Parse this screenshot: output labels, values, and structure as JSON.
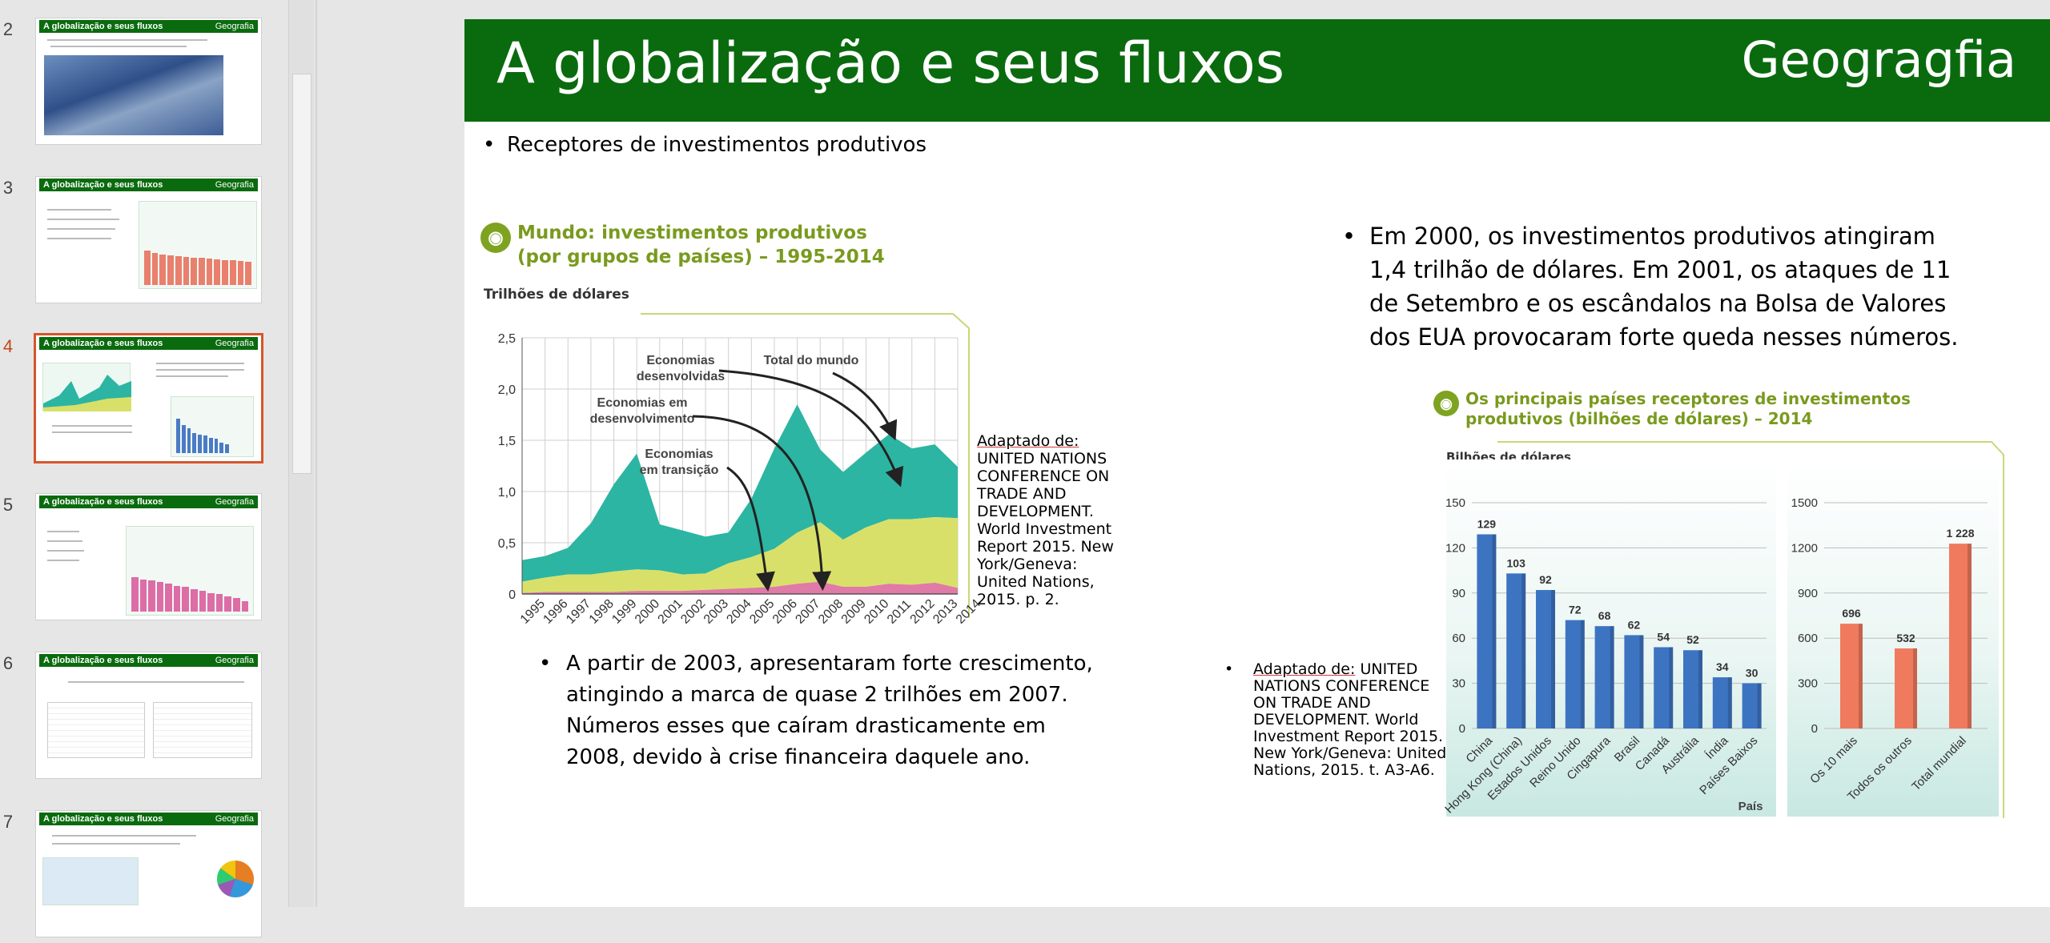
{
  "thumbnails": [
    {
      "number": "2",
      "title": "A globalização e seus fluxos",
      "subject": "Geografia",
      "active": false
    },
    {
      "number": "3",
      "title": "A globalização e seus fluxos",
      "subject": "Geografia",
      "active": false
    },
    {
      "number": "4",
      "title": "A globalização e seus fluxos",
      "subject": "Geografia",
      "active": true
    },
    {
      "number": "5",
      "title": "A globalização e seus fluxos",
      "subject": "Geografia",
      "active": false
    },
    {
      "number": "6",
      "title": "A globalização e seus fluxos",
      "subject": "Geografia",
      "active": false
    },
    {
      "number": "7",
      "title": "A globalização e seus fluxos",
      "subject": "Geografia",
      "active": false
    }
  ],
  "slide": {
    "title": "A globalização e seus fluxos",
    "subject": "Geogragfia",
    "bullet1": "Receptores de investimentos produtivos",
    "bullet2": "Em 2000, os investimentos produtivos atingiram 1,4 trilhão de dólares.  Em 2001, os ataques de 11 de Setembro e os escândalos na Bolsa de Valores dos EUA provocaram forte queda nesses números.",
    "bullet3": "A partir de 2003, apresentaram forte crescimento, atingindo a marca de quase 2 trilhões em 2007. Números esses que caíram drasticamente em 2008, devido à crise financeira daquele ano.",
    "source1_label": "Adaptado de:",
    "source1_text": "UNITED NATIONS CONFERENCE ON TRADE AND DEVELOPMENT. World Investment Report 2015. New York/Geneva: United Nations, 2015. p. 2.",
    "source2_label": "Adaptado de:",
    "source2_text": "UNITED NATIONS CONFERENCE ON TRADE AND DEVELOPMENT. World Investment Report 2015. New York/Geneva: United Nations, 2015. t. A3-A6.",
    "bullet_glyph": "•"
  },
  "chart_data": [
    {
      "type": "area",
      "title_line1": "Mundo: investimentos produtivos",
      "title_line2": "(por grupos de países) – 1995-2014",
      "ylabel": "Trilhões de dólares",
      "x": [
        "1995",
        "1996",
        "1997",
        "1998",
        "1999",
        "2000",
        "2001",
        "2002",
        "2003",
        "2004",
        "2005",
        "2006",
        "2007",
        "2008",
        "2009",
        "2010",
        "2011",
        "2012",
        "2013",
        "2014"
      ],
      "ylim": [
        0,
        2.5
      ],
      "yticks": [
        "0",
        "0,5",
        "1,0",
        "1,5",
        "2,0",
        "2,5"
      ],
      "stacked": true,
      "series": [
        {
          "name": "Economias em transição",
          "values": [
            0.01,
            0.02,
            0.02,
            0.02,
            0.02,
            0.03,
            0.03,
            0.03,
            0.04,
            0.05,
            0.06,
            0.07,
            0.1,
            0.12,
            0.07,
            0.07,
            0.1,
            0.09,
            0.11,
            0.06
          ],
          "color": "#e07aa6"
        },
        {
          "name": "Economias em desenvolvimento",
          "values": [
            0.11,
            0.14,
            0.17,
            0.17,
            0.2,
            0.21,
            0.2,
            0.16,
            0.16,
            0.25,
            0.3,
            0.37,
            0.5,
            0.58,
            0.46,
            0.58,
            0.63,
            0.64,
            0.64,
            0.68
          ],
          "color": "#d8e06a"
        },
        {
          "name": "Economias desenvolvidas",
          "values": [
            0.21,
            0.21,
            0.26,
            0.5,
            0.85,
            1.13,
            0.45,
            0.43,
            0.36,
            0.3,
            0.57,
            0.98,
            1.25,
            0.71,
            0.66,
            0.73,
            0.83,
            0.69,
            0.71,
            0.5
          ],
          "color": "#2cb5a2"
        }
      ],
      "annotations": [
        "Economias desenvolvidas",
        "Total do mundo",
        "Economias em desenvolvimento",
        "Economias em transição"
      ]
    },
    {
      "type": "bar",
      "title_line1": "Os principais países receptores de investimentos",
      "title_line2": "produtivos (bilhões de dólares) – 2014",
      "ylabel": "Bilhões de dólares",
      "xlabel": "País",
      "left": {
        "categories": [
          "China",
          "Hong Kong (China)",
          "Estados Unidos",
          "Reino Unido",
          "Cingapura",
          "Brasil",
          "Canadá",
          "Austrália",
          "Índia",
          "Países Baixos"
        ],
        "values": [
          129,
          103,
          92,
          72,
          68,
          62,
          54,
          52,
          34,
          30
        ],
        "ylim": [
          0,
          150
        ],
        "yticks": [
          "0",
          "30",
          "60",
          "90",
          "120",
          "150"
        ],
        "color": "#3d74c2"
      },
      "right": {
        "categories": [
          "Os 10 mais",
          "Todos os outros",
          "Total mundial"
        ],
        "values": [
          696,
          532,
          1228
        ],
        "labels": [
          "696",
          "532",
          "1 228"
        ],
        "ylim": [
          0,
          1500
        ],
        "yticks": [
          "0",
          "300",
          "600",
          "900",
          "1200",
          "1500"
        ],
        "color": "#f07a5e"
      }
    }
  ]
}
